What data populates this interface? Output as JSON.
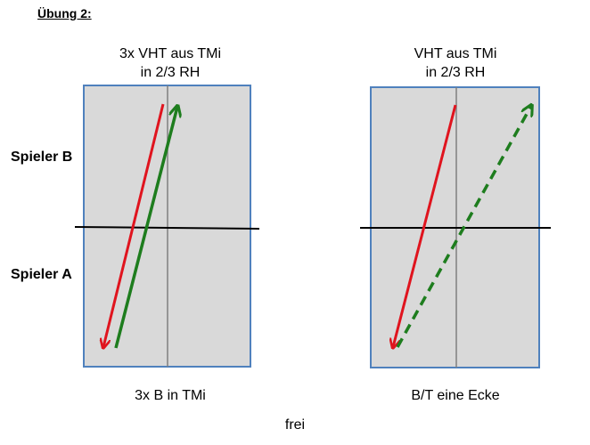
{
  "heading": "Übung 2:",
  "players": {
    "top": "Spieler B",
    "bottom": "Spieler A"
  },
  "panels": [
    {
      "caption_line1": "3x VHT aus TMi",
      "caption_line2": "in 2/3 RH",
      "bottom_label": "3x B in TMi"
    },
    {
      "caption_line1": "VHT aus TMi",
      "caption_line2": "in 2/3 RH",
      "bottom_label": "B/T eine Ecke"
    }
  ],
  "footer": "frei",
  "colors": {
    "table_fill": "#d9d9d9",
    "table_border": "#4f81bd",
    "red_arrow": "#e0141e",
    "green_arrow": "#1e7d1e",
    "net": "#000000",
    "center_line": "#808080"
  }
}
